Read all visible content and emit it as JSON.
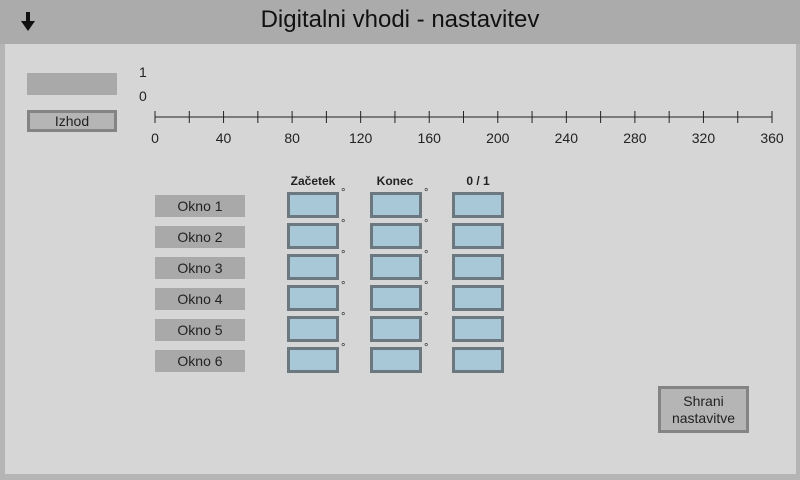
{
  "header": {
    "title": "Digitalni vhodi - nastavitev",
    "back_icon": "down-arrow-icon"
  },
  "signal": {
    "exit_button": "Izhod",
    "y_labels": [
      "1",
      "0"
    ]
  },
  "axis": {
    "ticks": [
      "0",
      "40",
      "80",
      "120",
      "160",
      "200",
      "240",
      "280",
      "320",
      "360"
    ]
  },
  "table": {
    "columns": [
      "Začetek",
      "Konec",
      "0 / 1"
    ],
    "degree_symbol": "°",
    "rows": [
      {
        "label": "Okno 1",
        "start": "",
        "end": "",
        "state": ""
      },
      {
        "label": "Okno 2",
        "start": "",
        "end": "",
        "state": ""
      },
      {
        "label": "Okno 3",
        "start": "",
        "end": "",
        "state": ""
      },
      {
        "label": "Okno 4",
        "start": "",
        "end": "",
        "state": ""
      },
      {
        "label": "Okno 5",
        "start": "",
        "end": "",
        "state": ""
      },
      {
        "label": "Okno 6",
        "start": "",
        "end": "",
        "state": ""
      }
    ]
  },
  "save_button": "Shrani nastavitve",
  "colors": {
    "panel": "#d6d6d6",
    "field_fill": "#a8c8d8",
    "field_border": "#6c7880"
  }
}
